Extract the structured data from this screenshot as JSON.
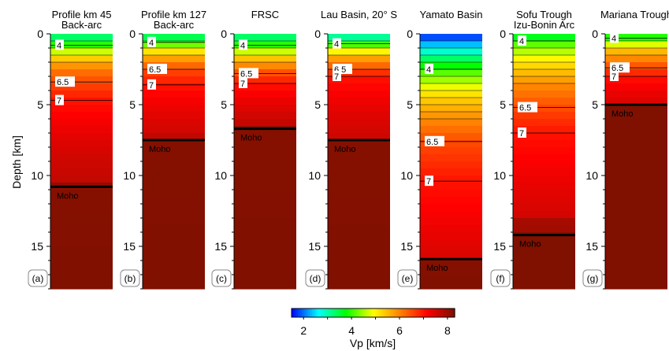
{
  "chart_data": {
    "type": "heatmap",
    "y_axis": {
      "label": "Depth [km]",
      "range": [
        0,
        18
      ],
      "ticks": [
        "0",
        "5",
        "10",
        "15"
      ]
    },
    "colorbar": {
      "label": "Vp [km/s]",
      "range": [
        1.5,
        8.3
      ],
      "tick_labels": [
        "2",
        "4",
        "6",
        "8"
      ],
      "tick_values": [
        2,
        4,
        6,
        8
      ],
      "colors": [
        "#0000ff",
        "#00ffff",
        "#00ff00",
        "#ffff00",
        "#ff8000",
        "#ff0000",
        "#7a1100"
      ]
    },
    "moho_label": "Moho",
    "panels": [
      {
        "title": [
          "Profile km 45",
          "Back-arc"
        ],
        "panel_label": "(a)",
        "moho_depth": 10.8,
        "contours": [
          {
            "label": "4",
            "depth": 0.8
          },
          {
            "label": "6.5",
            "depth": 3.4
          },
          {
            "label": "7",
            "depth": 4.7
          }
        ],
        "velocity_profile": [
          [
            0,
            3.0
          ],
          [
            0.8,
            4.0
          ],
          [
            1.6,
            5.2
          ],
          [
            2.5,
            6.1
          ],
          [
            3.4,
            6.5
          ],
          [
            4.7,
            7.0
          ],
          [
            6.5,
            7.3
          ],
          [
            8.5,
            7.55
          ],
          [
            10.5,
            7.7
          ],
          [
            10.8,
            8.2
          ],
          [
            18,
            8.25
          ]
        ]
      },
      {
        "title": [
          "Profile km 127",
          "Back-arc"
        ],
        "panel_label": "(b)",
        "moho_depth": 7.5,
        "contours": [
          {
            "label": "4",
            "depth": 0.6
          },
          {
            "label": "6.5",
            "depth": 2.5
          },
          {
            "label": "7",
            "depth": 3.6
          }
        ],
        "velocity_profile": [
          [
            0,
            3.0
          ],
          [
            0.6,
            4.0
          ],
          [
            1.4,
            5.4
          ],
          [
            2.5,
            6.5
          ],
          [
            3.6,
            7.0
          ],
          [
            5.0,
            7.3
          ],
          [
            7.2,
            7.6
          ],
          [
            7.5,
            8.2
          ],
          [
            18,
            8.25
          ]
        ]
      },
      {
        "title": [
          "FRSC"
        ],
        "panel_label": "(c)",
        "moho_depth": 6.7,
        "contours": [
          {
            "label": "4",
            "depth": 0.8
          },
          {
            "label": "6.5",
            "depth": 2.8
          },
          {
            "label": "7",
            "depth": 3.5
          }
        ],
        "velocity_profile": [
          [
            0,
            3.0
          ],
          [
            0.8,
            4.0
          ],
          [
            1.8,
            5.5
          ],
          [
            2.8,
            6.5
          ],
          [
            3.5,
            7.0
          ],
          [
            5.0,
            7.4
          ],
          [
            6.5,
            7.7
          ],
          [
            6.7,
            8.2
          ],
          [
            18,
            8.25
          ]
        ]
      },
      {
        "title": [
          "Lau Basin, 20° S"
        ],
        "panel_label": "(d)",
        "moho_depth": 7.5,
        "contours": [
          {
            "label": "4",
            "depth": 0.7
          },
          {
            "label": "6.5",
            "depth": 2.5
          },
          {
            "label": "7",
            "depth": 3.0
          }
        ],
        "velocity_profile": [
          [
            0,
            2.6
          ],
          [
            0.7,
            4.0
          ],
          [
            1.6,
            5.6
          ],
          [
            2.5,
            6.5
          ],
          [
            3.0,
            7.0
          ],
          [
            5.0,
            7.35
          ],
          [
            7.3,
            7.6
          ],
          [
            7.5,
            8.2
          ],
          [
            18,
            8.25
          ]
        ]
      },
      {
        "title": [
          "Yamato Basin"
        ],
        "panel_label": "(e)",
        "moho_depth": 15.9,
        "contours": [
          {
            "label": "4",
            "depth": 2.5
          },
          {
            "label": "6.5",
            "depth": 7.6
          },
          {
            "label": "7",
            "depth": 10.4
          }
        ],
        "velocity_profile": [
          [
            0,
            1.6
          ],
          [
            1.2,
            2.8
          ],
          [
            2.5,
            4.0
          ],
          [
            4.5,
            5.3
          ],
          [
            6.2,
            6.0
          ],
          [
            7.6,
            6.5
          ],
          [
            10.4,
            7.0
          ],
          [
            13.5,
            7.3
          ],
          [
            15.9,
            7.5
          ],
          [
            15.9,
            8.2
          ],
          [
            18,
            8.25
          ]
        ]
      },
      {
        "title": [
          "Sofu Trough",
          "Izu-Bonin Arc"
        ],
        "panel_label": "(f)",
        "moho_depth": 14.2,
        "contours": [
          {
            "label": "4",
            "depth": 0.5
          },
          {
            "label": "6.5",
            "depth": 5.2
          },
          {
            "label": "7",
            "depth": 7.0
          }
        ],
        "velocity_profile": [
          [
            0,
            3.3
          ],
          [
            0.5,
            4.0
          ],
          [
            1.8,
            5.0
          ],
          [
            3.5,
            5.9
          ],
          [
            5.2,
            6.5
          ],
          [
            7.0,
            7.0
          ],
          [
            10.0,
            7.3
          ],
          [
            13.0,
            7.55
          ],
          [
            13.0,
            7.9
          ],
          [
            14.2,
            8.0
          ],
          [
            14.2,
            8.25
          ],
          [
            18,
            8.25
          ]
        ]
      },
      {
        "title": [
          "Mariana Trough"
        ],
        "panel_label": "(g)",
        "moho_depth": 5.0,
        "contours": [
          {
            "label": "4",
            "depth": 0.3
          },
          {
            "label": "6.5",
            "depth": 2.4
          },
          {
            "label": "7",
            "depth": 3.0
          }
        ],
        "velocity_profile": [
          [
            0,
            3.5
          ],
          [
            0.3,
            4.0
          ],
          [
            1.2,
            5.5
          ],
          [
            2.4,
            6.5
          ],
          [
            3.0,
            7.0
          ],
          [
            4.0,
            7.3
          ],
          [
            5.0,
            7.5
          ],
          [
            5.0,
            8.25
          ],
          [
            18,
            8.25
          ]
        ]
      }
    ]
  }
}
